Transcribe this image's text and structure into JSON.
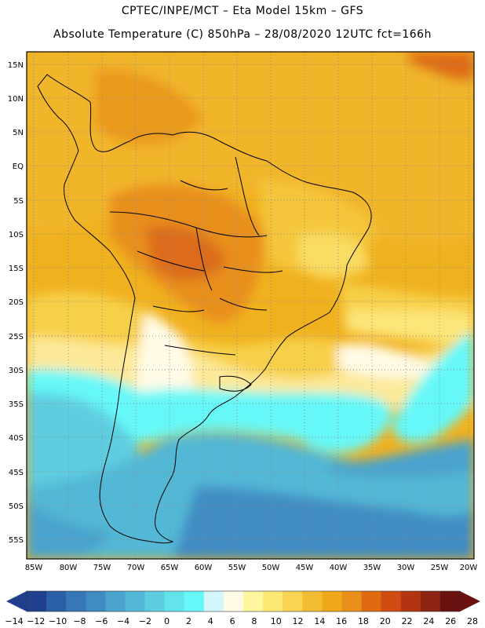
{
  "title": {
    "line1": "CPTEC/INPE/MCT –  Eta Model 15km – GFS",
    "line2": "Absolute Temperature (C) 850hPa – 28/08/2020 12UTC fct=166h"
  },
  "map": {
    "lat_labels": [
      "15N",
      "10N",
      "5N",
      "EQ",
      "5S",
      "10S",
      "15S",
      "20S",
      "25S",
      "30S",
      "35S",
      "40S",
      "45S",
      "50S",
      "55S"
    ],
    "lon_labels": [
      "85W",
      "80W",
      "75W",
      "70W",
      "65W",
      "60W",
      "55W",
      "50W",
      "45W",
      "40W",
      "35W",
      "30W",
      "25W",
      "20W"
    ]
  },
  "colorbar": {
    "labels": [
      "-14",
      "-12",
      "-10",
      "-8",
      "-6",
      "-4",
      "-2",
      "0",
      "2",
      "4",
      "6",
      "8",
      "10",
      "12",
      "14",
      "16",
      "18",
      "20",
      "22",
      "24",
      "26",
      "28"
    ],
    "colors": [
      "#1f3f8f",
      "#2a5ea6",
      "#3777b6",
      "#3f8cc3",
      "#4aa3cc",
      "#53b7d6",
      "#5fcde0",
      "#63e3ea",
      "#66f8f8",
      "#d2f6fb",
      "#fffbe6",
      "#fff6a0",
      "#fde873",
      "#f9d452",
      "#f2bd33",
      "#eea81a",
      "#e8901a",
      "#df6a12",
      "#cf4b10",
      "#b33410",
      "#8d2412",
      "#6a1010"
    ]
  }
}
